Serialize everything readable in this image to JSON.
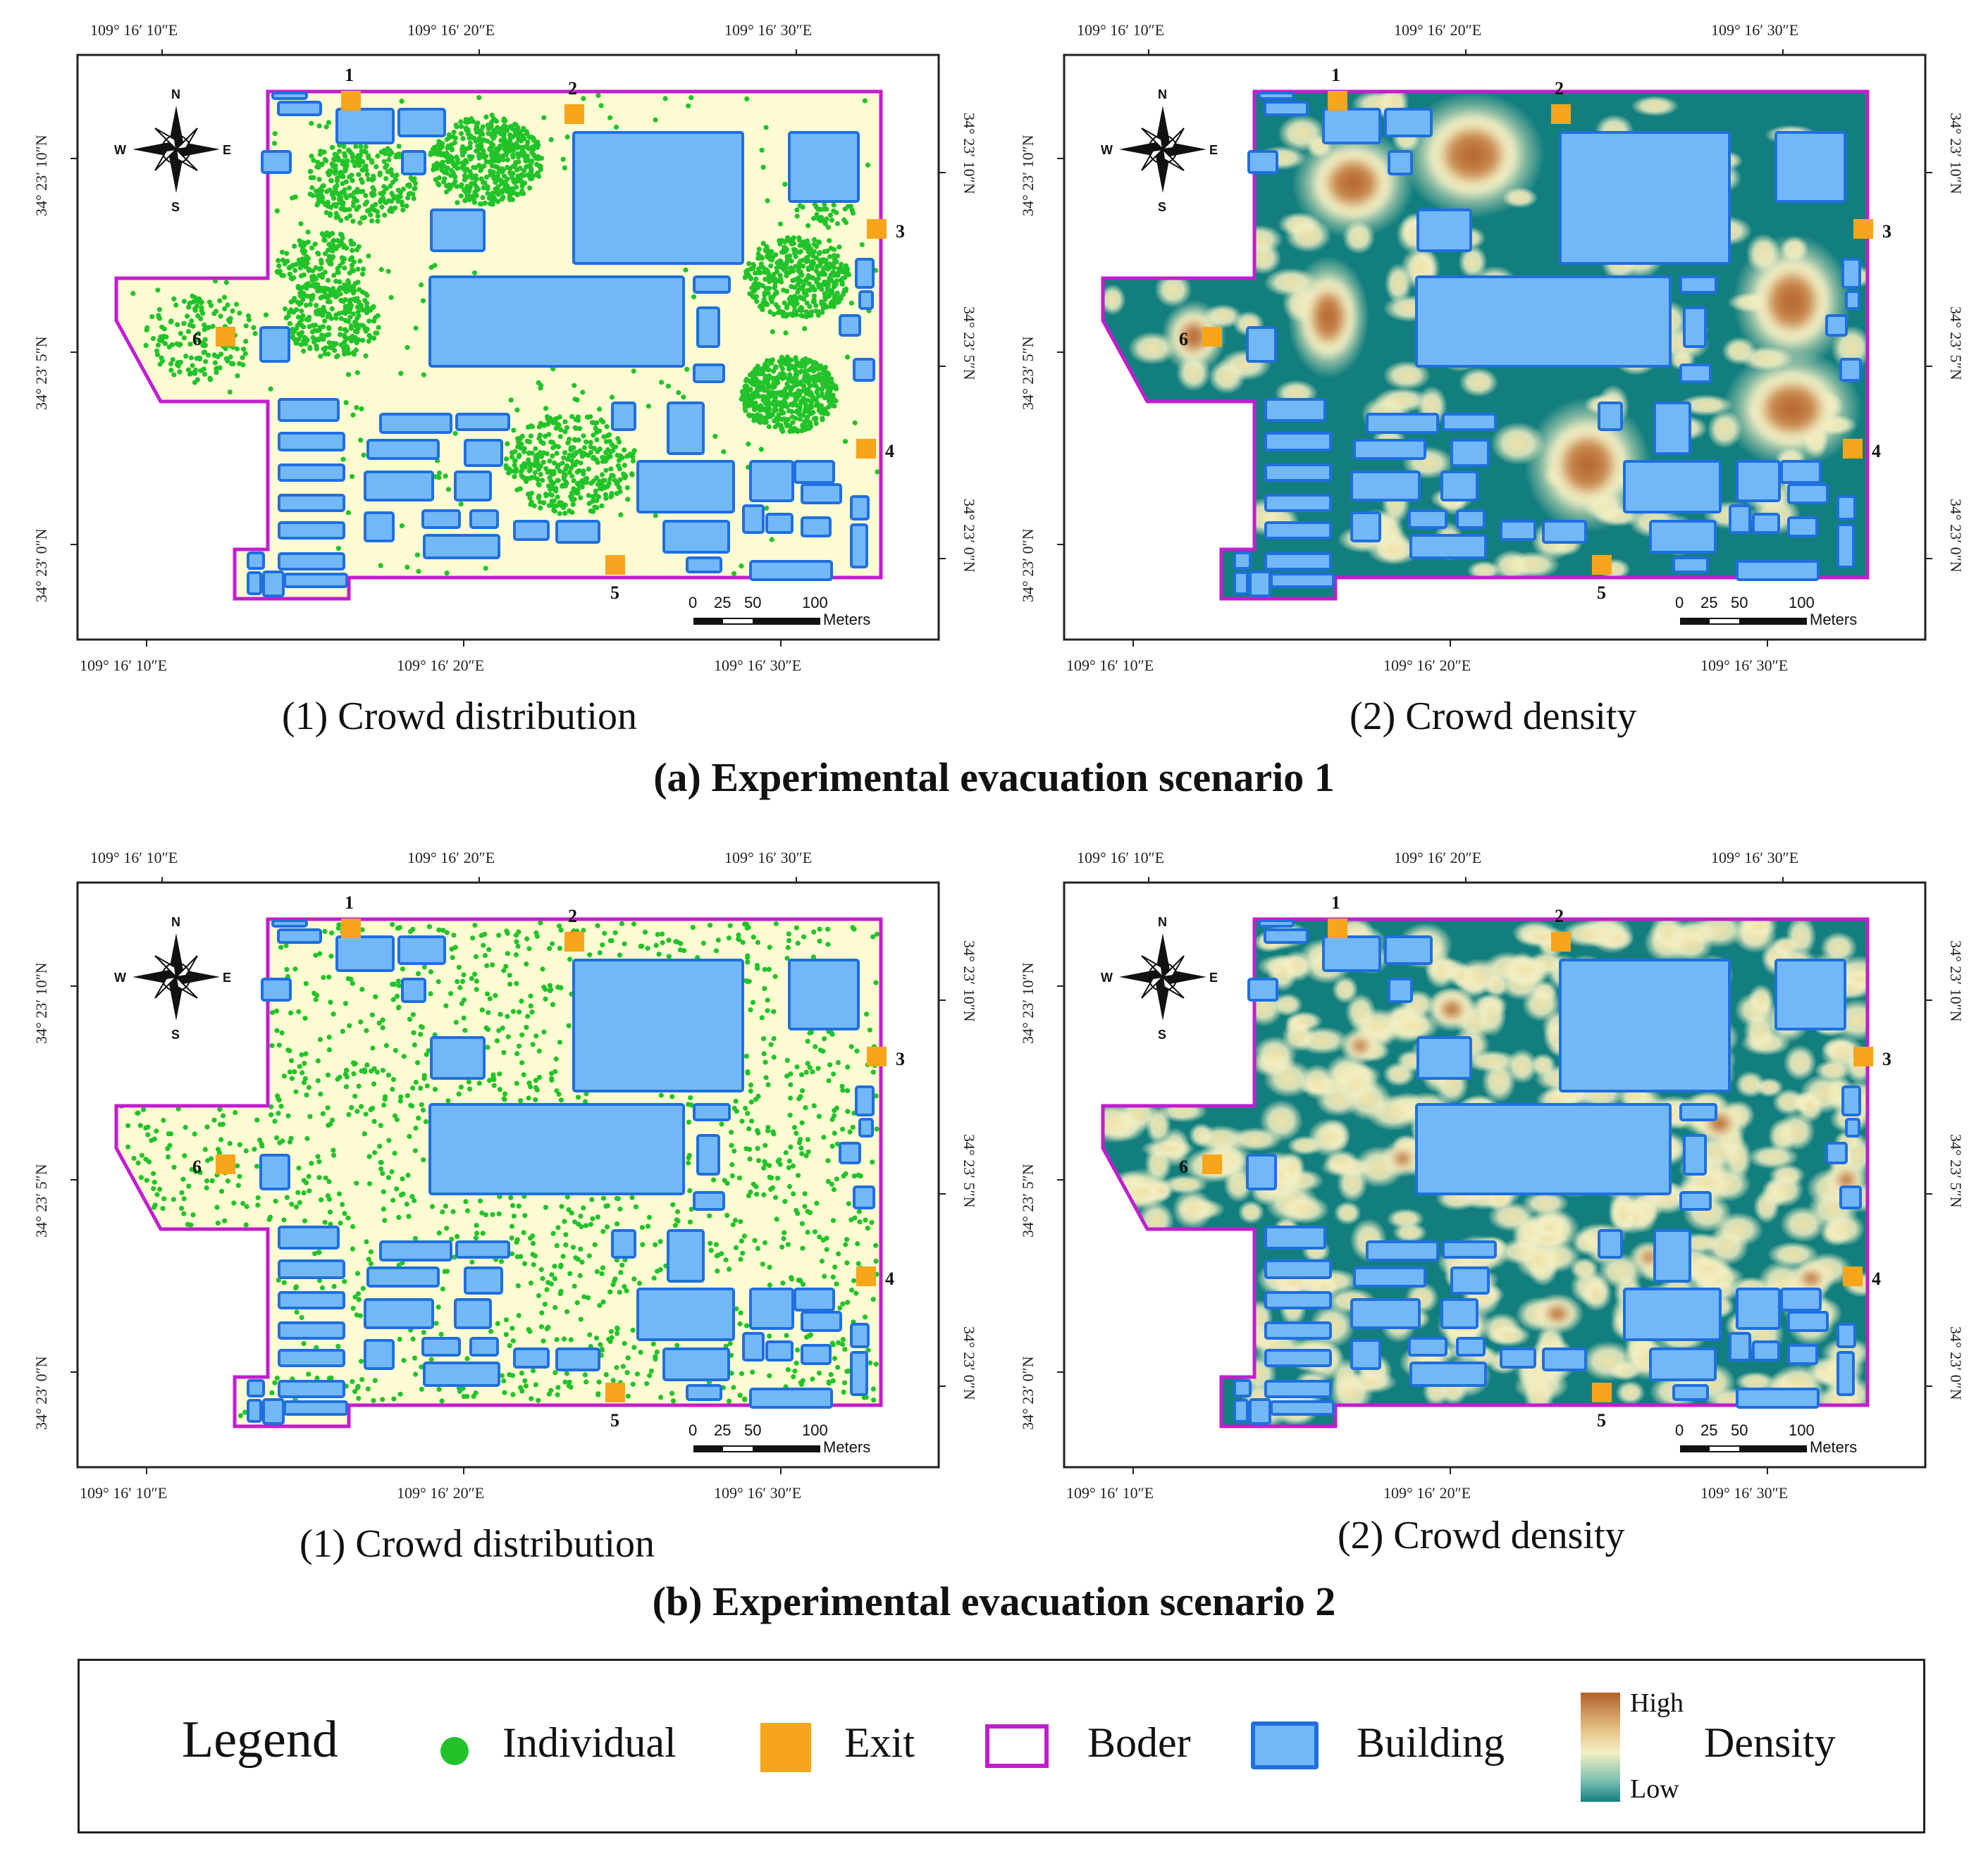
{
  "colors": {
    "individual": "#22c32a",
    "exit": "#f7a51b",
    "border": "#c41ccf",
    "building_fill": "#73b8f6",
    "building_stroke": "#1f6fe0",
    "site_fill": "#fdfbd2",
    "density_low": "#127f7e",
    "density_mid": "#f3efc3",
    "density_high": "#b2602a"
  },
  "coords": {
    "lon": [
      "109° 16′ 10″E",
      "109° 16′ 20″E",
      "109° 16′ 30″E"
    ],
    "lat": [
      "34° 23′ 10″N",
      "34° 23′ 5″N",
      "34° 23′ 0″N"
    ]
  },
  "compass": {
    "n": "N",
    "s": "S",
    "e": "E",
    "w": "W"
  },
  "exit_labels": [
    "1",
    "2",
    "3",
    "4",
    "5",
    "6"
  ],
  "scalebar": {
    "ticks": [
      "0",
      "25",
      "50",
      "100"
    ],
    "unit": "Meters"
  },
  "scenarios": [
    {
      "title": "(a) Experimental evacuation scenario 1",
      "panels": [
        {
          "caption": "(1) Crowd distribution",
          "type": "distribution"
        },
        {
          "caption": "(2) Crowd density",
          "type": "density"
        }
      ]
    },
    {
      "title": "(b) Experimental evacuation scenario 2",
      "panels": [
        {
          "caption": "(1) Crowd distribution",
          "type": "distribution"
        },
        {
          "caption": "(2) Crowd density",
          "type": "density"
        }
      ]
    }
  ],
  "legend": {
    "title": "Legend",
    "individual": "Individual",
    "exit": "Exit",
    "border": "Boder",
    "building": "Building",
    "density": "Density",
    "high": "High",
    "low": "Low"
  }
}
